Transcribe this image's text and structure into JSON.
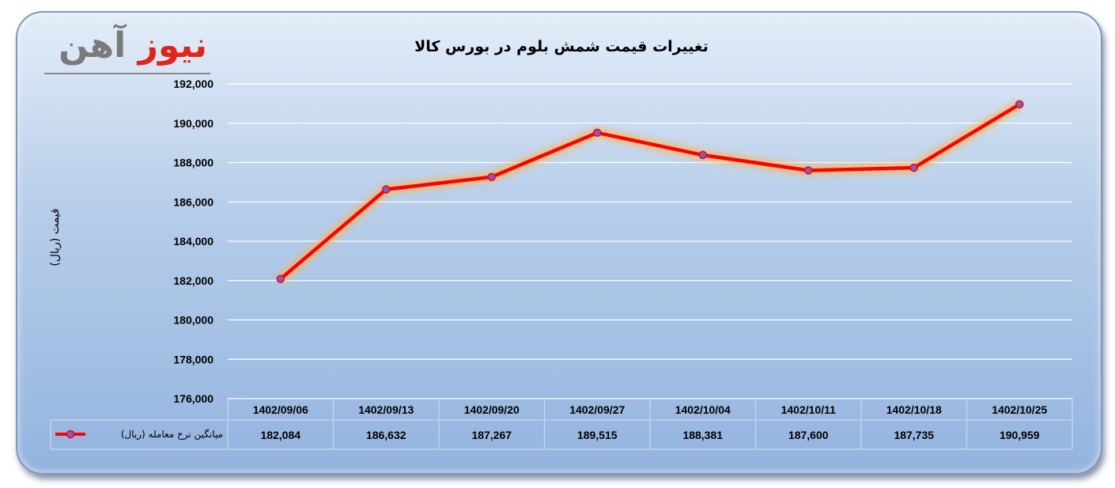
{
  "logo": {
    "part1": "نیوز",
    "part2": "آهن"
  },
  "chart_data": {
    "type": "line",
    "title": "تغییرات قیمت شمش بلوم در بورس کالا",
    "ylabel": "قیمت (ریال)",
    "xlabel": "",
    "categories": [
      "1402/09/06",
      "1402/09/13",
      "1402/09/20",
      "1402/09/27",
      "1402/10/04",
      "1402/10/11",
      "1402/10/18",
      "1402/10/25"
    ],
    "series": [
      {
        "name": "میانگین نرخ معامله (ریال)",
        "values": [
          182084,
          186632,
          187267,
          189515,
          188381,
          187600,
          187735,
          190959
        ]
      }
    ],
    "value_labels": [
      "182,084",
      "186,632",
      "187,267",
      "189,515",
      "188,381",
      "187,600",
      "187,735",
      "190,959"
    ],
    "yticks": [
      "176,000",
      "178,000",
      "180,000",
      "182,000",
      "184,000",
      "186,000",
      "188,000",
      "190,000",
      "192,000"
    ],
    "ylim": [
      176000,
      192000
    ],
    "grid": true,
    "legend": "data-table",
    "line_color": "#ff0000",
    "marker_color": "#7b5fc6"
  }
}
